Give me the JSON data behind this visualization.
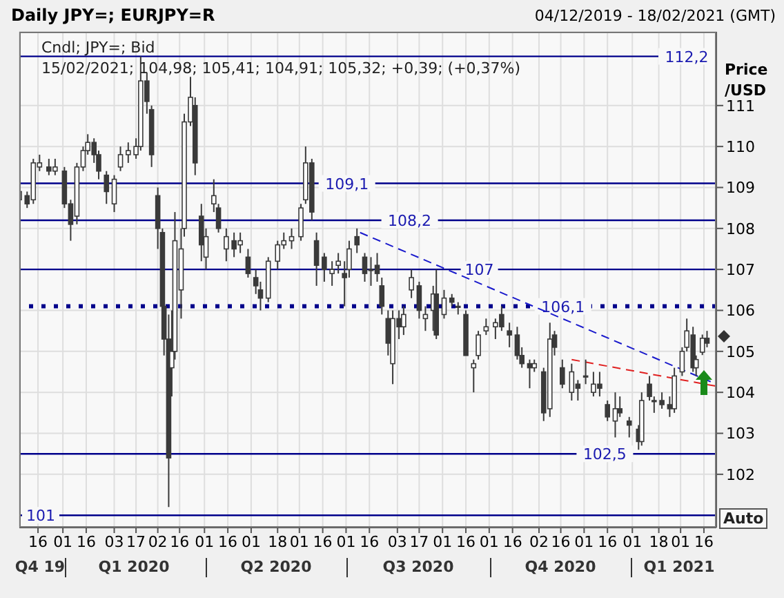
{
  "chart_data": {
    "type": "candlestick",
    "title": "Daily JPY=; EURJPY=R",
    "subtitle": "04/12/2019 - 18/02/2021 (GMT)",
    "ylabel": "Price /USD",
    "xlim": [
      "2019-12-04",
      "2021-02-24"
    ],
    "ylim": [
      100.7,
      112.8
    ],
    "xticks": [
      {
        "value": "2019-12-16",
        "label": "16"
      },
      {
        "value": "2020-01-01",
        "label": "01"
      },
      {
        "value": "2020-01-16",
        "label": "16"
      },
      {
        "value": "2020-02-03",
        "label": "03"
      },
      {
        "value": "2020-02-17",
        "label": "17"
      },
      {
        "value": "2020-03-02",
        "label": "02"
      },
      {
        "value": "2020-03-16",
        "label": "16"
      },
      {
        "value": "2020-04-01",
        "label": "01"
      },
      {
        "value": "2020-04-16",
        "label": "16"
      },
      {
        "value": "2020-05-01",
        "label": "01"
      },
      {
        "value": "2020-05-18",
        "label": "18"
      },
      {
        "value": "2020-06-01",
        "label": "01"
      },
      {
        "value": "2020-06-16",
        "label": "16"
      },
      {
        "value": "2020-07-01",
        "label": "01"
      },
      {
        "value": "2020-07-16",
        "label": "16"
      },
      {
        "value": "2020-08-03",
        "label": "03"
      },
      {
        "value": "2020-08-17",
        "label": "17"
      },
      {
        "value": "2020-09-01",
        "label": "01"
      },
      {
        "value": "2020-09-16",
        "label": "16"
      },
      {
        "value": "2020-10-01",
        "label": "01"
      },
      {
        "value": "2020-10-16",
        "label": "16"
      },
      {
        "value": "2020-11-02",
        "label": "02"
      },
      {
        "value": "2020-11-16",
        "label": "16"
      },
      {
        "value": "2020-12-01",
        "label": "01"
      },
      {
        "value": "2020-12-16",
        "label": "16"
      },
      {
        "value": "2021-01-01",
        "label": "01"
      },
      {
        "value": "2021-01-18",
        "label": "18"
      },
      {
        "value": "2021-02-01",
        "label": "01"
      },
      {
        "value": "2021-02-16",
        "label": "16"
      }
    ],
    "yticks": [
      102,
      103,
      104,
      105,
      106,
      107,
      108,
      109,
      110,
      111
    ],
    "grid": true,
    "ref_lines": [
      {
        "axis": "y",
        "value": 112.2,
        "label": "112,2",
        "color": "#00008b",
        "line_style": "solid"
      },
      {
        "axis": "y",
        "value": 109.1,
        "label": "109,1",
        "color": "#00008b",
        "line_style": "solid"
      },
      {
        "axis": "y",
        "value": 108.2,
        "label": "108,2",
        "color": "#00008b",
        "line_style": "solid"
      },
      {
        "axis": "y",
        "value": 107,
        "label": "107",
        "color": "#00008b",
        "line_style": "solid"
      },
      {
        "axis": "y",
        "value": 106.1,
        "label": "106,1",
        "color": "#00008b",
        "line_style": "dotted"
      },
      {
        "axis": "y",
        "value": 102.5,
        "label": "102,5",
        "color": "#00008b",
        "line_style": "solid"
      },
      {
        "axis": "y",
        "value": 101,
        "label": "101",
        "color": "#00008b",
        "line_style": "solid"
      }
    ],
    "color": "#3a3a3a",
    "x": [
      "2019-12-04",
      "2019-12-09",
      "2019-12-13",
      "2019-12-17",
      "2019-12-23",
      "2019-12-27",
      "2020-01-02",
      "2020-01-06",
      "2020-01-10",
      "2020-01-14",
      "2020-01-17",
      "2020-01-21",
      "2020-01-24",
      "2020-01-29",
      "2020-02-03",
      "2020-02-07",
      "2020-02-12",
      "2020-02-17",
      "2020-02-20",
      "2020-02-24",
      "2020-02-27",
      "2020-03-02",
      "2020-03-05",
      "2020-03-06",
      "2020-03-09",
      "2020-03-11",
      "2020-03-13",
      "2020-03-17",
      "2020-03-19",
      "2020-03-23",
      "2020-03-26",
      "2020-03-30",
      "2020-04-02",
      "2020-04-07",
      "2020-04-10",
      "2020-04-15",
      "2020-04-20",
      "2020-04-24",
      "2020-04-29",
      "2020-05-04",
      "2020-05-07",
      "2020-05-12",
      "2020-05-18",
      "2020-05-22",
      "2020-05-27",
      "2020-06-02",
      "2020-06-05",
      "2020-06-09",
      "2020-06-12",
      "2020-06-17",
      "2020-06-22",
      "2020-06-26",
      "2020-06-30",
      "2020-07-03",
      "2020-07-08",
      "2020-07-13",
      "2020-07-17",
      "2020-07-21",
      "2020-07-24",
      "2020-07-28",
      "2020-07-31",
      "2020-08-04",
      "2020-08-07",
      "2020-08-12",
      "2020-08-17",
      "2020-08-21",
      "2020-08-26",
      "2020-08-28",
      "2020-09-02",
      "2020-09-07",
      "2020-09-11",
      "2020-09-16",
      "2020-09-21",
      "2020-09-24",
      "2020-09-29",
      "2020-10-05",
      "2020-10-09",
      "2020-10-14",
      "2020-10-19",
      "2020-10-22",
      "2020-10-27",
      "2020-10-30",
      "2020-11-05",
      "2020-11-09",
      "2020-11-12",
      "2020-11-17",
      "2020-11-23",
      "2020-11-27",
      "2020-12-02",
      "2020-12-07",
      "2020-12-11",
      "2020-12-16",
      "2020-12-21",
      "2020-12-24",
      "2020-12-30",
      "2021-01-05",
      "2021-01-07",
      "2021-01-12",
      "2021-01-15",
      "2021-01-20",
      "2021-01-25",
      "2021-01-28",
      "2021-02-02",
      "2021-02-05",
      "2021-02-09",
      "2021-02-11",
      "2021-02-15",
      "2021-02-18"
    ],
    "ohlc": [
      [
        108.7,
        109.0,
        108.5,
        108.9
      ],
      [
        108.8,
        108.9,
        108.5,
        108.6
      ],
      [
        108.7,
        109.7,
        108.6,
        109.6
      ],
      [
        109.5,
        109.8,
        109.4,
        109.6
      ],
      [
        109.5,
        109.7,
        109.3,
        109.4
      ],
      [
        109.4,
        109.7,
        109.3,
        109.5
      ],
      [
        109.4,
        109.5,
        108.5,
        108.6
      ],
      [
        108.6,
        108.7,
        107.7,
        108.1
      ],
      [
        108.3,
        109.6,
        108.1,
        109.5
      ],
      [
        109.5,
        110.0,
        109.4,
        109.9
      ],
      [
        109.9,
        110.3,
        109.8,
        110.1
      ],
      [
        110.1,
        110.2,
        109.6,
        109.8
      ],
      [
        109.8,
        109.9,
        109.2,
        109.4
      ],
      [
        109.3,
        109.4,
        108.6,
        108.9
      ],
      [
        108.6,
        109.3,
        108.4,
        109.2
      ],
      [
        109.5,
        110.0,
        109.4,
        109.8
      ],
      [
        109.8,
        110.1,
        109.6,
        109.9
      ],
      [
        109.8,
        110.2,
        109.7,
        110.0
      ],
      [
        110.0,
        112.2,
        109.9,
        111.6
      ],
      [
        111.6,
        111.8,
        110.8,
        111.1
      ],
      [
        110.9,
        111.0,
        109.5,
        109.8
      ],
      [
        108.8,
        109.0,
        107.5,
        108.0
      ],
      [
        107.9,
        108.0,
        105.8,
        106.1
      ],
      [
        106.1,
        106.2,
        104.9,
        105.3
      ],
      [
        105.3,
        105.9,
        101.2,
        102.4
      ],
      [
        104.6,
        106.0,
        103.9,
        105.0
      ],
      [
        105.0,
        108.4,
        104.8,
        107.7
      ],
      [
        106.5,
        108.0,
        105.8,
        107.5
      ],
      [
        108.0,
        110.8,
        107.8,
        110.6
      ],
      [
        110.6,
        111.7,
        110.5,
        111.2
      ],
      [
        111.0,
        111.2,
        109.3,
        109.6
      ],
      [
        108.3,
        108.6,
        107.2,
        107.6
      ],
      [
        107.3,
        108.0,
        107.0,
        107.8
      ],
      [
        108.6,
        109.2,
        108.4,
        108.8
      ],
      [
        108.5,
        108.6,
        107.9,
        108.0
      ],
      [
        107.5,
        108.0,
        107.2,
        107.8
      ],
      [
        107.7,
        107.9,
        107.3,
        107.5
      ],
      [
        107.6,
        107.9,
        107.4,
        107.7
      ],
      [
        107.3,
        107.5,
        106.8,
        106.9
      ],
      [
        106.8,
        107.0,
        106.4,
        106.6
      ],
      [
        106.5,
        106.7,
        106.0,
        106.3
      ],
      [
        106.3,
        107.3,
        106.2,
        107.2
      ],
      [
        107.2,
        107.7,
        107.0,
        107.6
      ],
      [
        107.6,
        107.9,
        107.5,
        107.7
      ],
      [
        107.7,
        108.0,
        107.5,
        107.8
      ],
      [
        107.8,
        108.6,
        107.7,
        108.5
      ],
      [
        108.7,
        110.0,
        108.6,
        109.6
      ],
      [
        109.6,
        109.7,
        108.2,
        108.4
      ],
      [
        107.7,
        107.9,
        106.6,
        107.1
      ],
      [
        107.3,
        107.4,
        106.7,
        107.0
      ],
      [
        106.9,
        107.2,
        106.6,
        107.0
      ],
      [
        107.1,
        107.4,
        106.9,
        107.2
      ],
      [
        106.9,
        107.2,
        106.1,
        106.8
      ],
      [
        107.0,
        107.7,
        106.8,
        107.5
      ],
      [
        107.8,
        108.0,
        107.4,
        107.6
      ],
      [
        107.3,
        107.4,
        106.7,
        106.9
      ],
      [
        107.0,
        107.3,
        106.6,
        107.0
      ],
      [
        107.1,
        107.4,
        106.7,
        106.9
      ],
      [
        106.6,
        106.8,
        105.9,
        106.1
      ],
      [
        105.8,
        106.0,
        104.9,
        105.2
      ],
      [
        104.7,
        106.0,
        104.2,
        105.8
      ],
      [
        105.8,
        106.0,
        105.3,
        105.6
      ],
      [
        105.6,
        106.1,
        105.4,
        105.9
      ],
      [
        106.5,
        107.0,
        106.3,
        106.8
      ],
      [
        106.6,
        106.7,
        105.8,
        106.0
      ],
      [
        105.8,
        106.1,
        105.5,
        105.9
      ],
      [
        106.0,
        106.6,
        105.5,
        106.4
      ],
      [
        106.4,
        107.0,
        105.3,
        105.4
      ],
      [
        105.9,
        106.5,
        105.8,
        106.3
      ],
      [
        106.3,
        106.4,
        106.1,
        106.2
      ],
      [
        106.1,
        106.2,
        105.9,
        106.1
      ],
      [
        105.9,
        106.0,
        104.9,
        104.9
      ],
      [
        104.6,
        104.8,
        104.0,
        104.7
      ],
      [
        104.9,
        105.5,
        104.8,
        105.4
      ],
      [
        105.5,
        105.8,
        105.4,
        105.6
      ],
      [
        105.6,
        105.8,
        105.3,
        105.7
      ],
      [
        105.9,
        106.1,
        105.5,
        105.6
      ],
      [
        105.5,
        105.7,
        105.1,
        105.4
      ],
      [
        105.4,
        105.6,
        104.8,
        104.9
      ],
      [
        104.9,
        105.1,
        104.6,
        104.7
      ],
      [
        104.7,
        104.8,
        104.1,
        104.6
      ],
      [
        104.6,
        104.8,
        104.5,
        104.7
      ],
      [
        104.5,
        104.6,
        103.3,
        103.5
      ],
      [
        103.6,
        105.7,
        103.4,
        105.3
      ],
      [
        105.4,
        105.5,
        104.9,
        105.1
      ],
      [
        104.6,
        104.8,
        104.1,
        104.2
      ],
      [
        104.0,
        104.7,
        103.8,
        104.5
      ],
      [
        104.2,
        104.3,
        103.8,
        104.1
      ],
      [
        104.4,
        104.8,
        104.2,
        104.4
      ],
      [
        104.0,
        104.5,
        103.9,
        104.2
      ],
      [
        104.2,
        104.5,
        103.9,
        104.1
      ],
      [
        103.7,
        103.8,
        103.3,
        103.4
      ],
      [
        103.3,
        104.0,
        102.9,
        103.6
      ],
      [
        103.6,
        103.9,
        103.4,
        103.5
      ],
      [
        103.3,
        103.4,
        102.9,
        103.2
      ],
      [
        103.1,
        103.2,
        102.6,
        102.8
      ],
      [
        102.8,
        104.0,
        102.7,
        103.8
      ],
      [
        104.2,
        104.4,
        103.8,
        103.9
      ],
      [
        103.8,
        103.9,
        103.5,
        103.8
      ],
      [
        103.8,
        104.0,
        103.6,
        103.7
      ],
      [
        103.7,
        103.9,
        103.4,
        103.6
      ],
      [
        103.6,
        104.6,
        103.5,
        104.4
      ],
      [
        104.5,
        105.1,
        104.4,
        105.0
      ],
      [
        105.1,
        105.8,
        105.0,
        105.5
      ],
      [
        105.4,
        105.6,
        104.5,
        104.6
      ],
      [
        104.6,
        104.9,
        104.4,
        104.8
      ],
      [
        104.98,
        105.41,
        104.91,
        105.32
      ],
      [
        105.32,
        105.5,
        105.1,
        105.2
      ]
    ],
    "series": [
      {
        "type": "line",
        "color": "#1a1acc",
        "line_style": "dashed",
        "x": [
          "2020-07-10",
          "2021-02-24"
        ],
        "values": [
          107.9,
          104.2
        ]
      },
      {
        "type": "line",
        "color": "#e02020",
        "line_style": "dashed",
        "x": [
          "2020-11-23",
          "2021-02-24"
        ],
        "values": [
          104.8,
          104.15
        ]
      }
    ],
    "annotations": [
      "Cndl; JPY=; Bid",
      "15/02/2021; 104,98; 105,41; 104,91; 105,32; +0,39; (+0,37%)",
      "Auto",
      "Q4 19",
      "Q1 2020",
      "Q2 2020",
      "Q3 2020",
      "Q4 2020",
      "Q1 2021"
    ]
  }
}
